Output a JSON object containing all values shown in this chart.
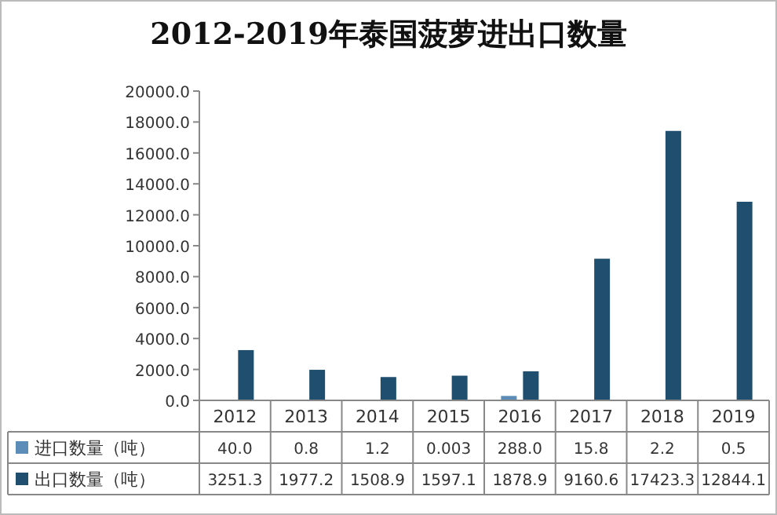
{
  "chart_data": {
    "type": "bar",
    "title": "2012-2019年泰国菠萝进出口数量",
    "categories": [
      "2012",
      "2013",
      "2014",
      "2015",
      "2016",
      "2017",
      "2018",
      "2019"
    ],
    "series": [
      {
        "name": "进口数量（吨）",
        "color": "#5b8db8",
        "values": [
          40.0,
          0.8,
          1.2,
          0.003,
          288.0,
          15.8,
          2.2,
          0.5
        ],
        "value_labels": [
          "40.0",
          "0.8",
          "1.2",
          "0.003",
          "288.0",
          "15.8",
          "2.2",
          "0.5"
        ]
      },
      {
        "name": "出口数量（吨）",
        "color": "#1f4e6e",
        "values": [
          3251.3,
          1977.2,
          1508.9,
          1597.1,
          1878.9,
          9160.6,
          17423.3,
          12844.1
        ],
        "value_labels": [
          "3251.3",
          "1977.2",
          "1508.9",
          "1597.1",
          "1878.9",
          "9160.6",
          "17423.3",
          "12844.1"
        ]
      }
    ],
    "ylim": [
      0,
      20000
    ],
    "yticks": [
      {
        "value": 0,
        "label": "0.0"
      },
      {
        "value": 2000,
        "label": "2000.0"
      },
      {
        "value": 4000,
        "label": "4000.0"
      },
      {
        "value": 6000,
        "label": "6000.0"
      },
      {
        "value": 8000,
        "label": "8000.0"
      },
      {
        "value": 10000,
        "label": "10000.0"
      },
      {
        "value": 12000,
        "label": "12000.0"
      },
      {
        "value": 14000,
        "label": "14000.0"
      },
      {
        "value": 16000,
        "label": "16000.0"
      },
      {
        "value": 18000,
        "label": "18000.0"
      },
      {
        "value": 20000,
        "label": "20000.0"
      }
    ],
    "legend": "bottom"
  }
}
